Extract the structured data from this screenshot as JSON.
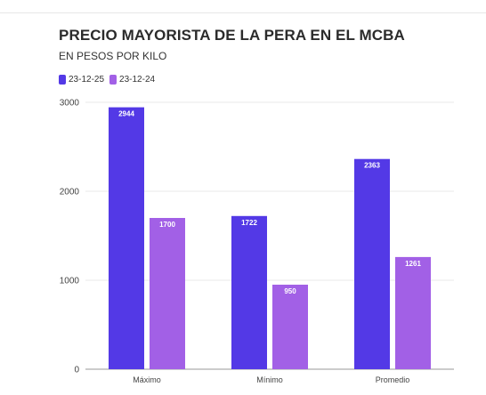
{
  "title": "PRECIO MAYORISTA DE LA PERA EN EL MCBA",
  "subtitle": "EN PESOS POR KILO",
  "chart_data": {
    "type": "bar",
    "title": "PRECIO MAYORISTA DE LA PERA EN EL MCBA",
    "subtitle": "EN PESOS POR KILO",
    "categories": [
      "Máximo",
      "Mínimo",
      "Promedio"
    ],
    "series": [
      {
        "name": "23-12-25",
        "values": [
          2944,
          1722,
          2363
        ],
        "color": "#5339e6"
      },
      {
        "name": "23-12-24",
        "values": [
          1700,
          950,
          1261
        ],
        "color": "#a260e6"
      }
    ],
    "yticks": [
      "0",
      "1000",
      "2000",
      "3000"
    ],
    "ylim": [
      0,
      3000
    ],
    "xlabel": "",
    "ylabel": "",
    "grid": true,
    "legend": "top-left"
  }
}
